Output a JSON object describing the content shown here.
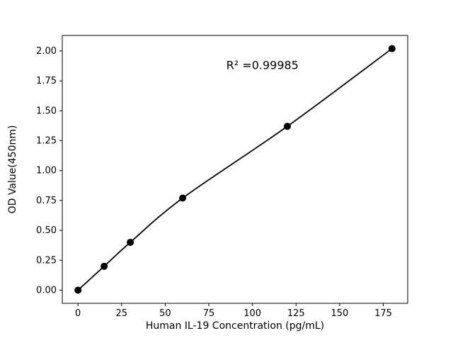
{
  "figure": {
    "background": "#ffffff"
  },
  "chart_data": {
    "type": "scatter",
    "x": [
      0,
      15,
      30,
      60,
      120,
      180
    ],
    "y": [
      0.0,
      0.2,
      0.4,
      0.77,
      1.37,
      2.02
    ],
    "fit_line": true,
    "title": "",
    "xlabel": "Human IL-19 Concentration (pg/mL)",
    "ylabel": "OD Value(450nm)",
    "xlim": [
      -9,
      189
    ],
    "ylim": [
      -0.11,
      2.13
    ],
    "xticks": [
      0,
      25,
      50,
      75,
      100,
      125,
      150,
      175
    ],
    "yticks": [
      0.0,
      0.25,
      0.5,
      0.75,
      1.0,
      1.25,
      1.5,
      1.75,
      2.0
    ],
    "annotation": {
      "text": "R² =0.99985",
      "x": 85,
      "y": 1.85
    },
    "marker_color": "#000000",
    "line_color": "#000000",
    "grid": false,
    "legend": null
  }
}
